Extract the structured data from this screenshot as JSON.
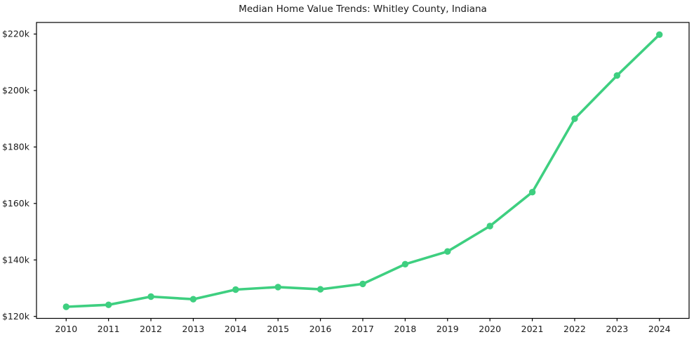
{
  "figure": {
    "background": "#ffffff",
    "frame_color": "#000000",
    "text_color": "#1a1a1a"
  },
  "chart_data": {
    "type": "line",
    "title": "Median Home Value Trends: Whitley County, Indiana",
    "xlabel": "",
    "ylabel": "",
    "x": [
      2010,
      2011,
      2012,
      2013,
      2014,
      2015,
      2016,
      2017,
      2018,
      2019,
      2020,
      2021,
      2022,
      2023,
      2024
    ],
    "series": [
      {
        "name": "Median Home Value",
        "values": [
          123400,
          124100,
          127000,
          126100,
          129500,
          130400,
          129600,
          131500,
          138500,
          143000,
          152000,
          164000,
          190000,
          205300,
          219800
        ]
      }
    ],
    "line_color": "#3ecf80",
    "marker": "circle",
    "grid": false,
    "legend": null,
    "xlim": [
      2009.3,
      2024.7
    ],
    "ylim": [
      119300,
      224100
    ],
    "xticks": [
      {
        "value": 2010,
        "label": "2010"
      },
      {
        "value": 2011,
        "label": "2011"
      },
      {
        "value": 2012,
        "label": "2012"
      },
      {
        "value": 2013,
        "label": "2013"
      },
      {
        "value": 2014,
        "label": "2014"
      },
      {
        "value": 2015,
        "label": "2015"
      },
      {
        "value": 2016,
        "label": "2016"
      },
      {
        "value": 2017,
        "label": "2017"
      },
      {
        "value": 2018,
        "label": "2018"
      },
      {
        "value": 2019,
        "label": "2019"
      },
      {
        "value": 2020,
        "label": "2020"
      },
      {
        "value": 2021,
        "label": "2021"
      },
      {
        "value": 2022,
        "label": "2022"
      },
      {
        "value": 2023,
        "label": "2023"
      },
      {
        "value": 2024,
        "label": "2024"
      }
    ],
    "yticks": [
      {
        "value": 120000,
        "label": "$120k"
      },
      {
        "value": 140000,
        "label": "$140k"
      },
      {
        "value": 160000,
        "label": "$160k"
      },
      {
        "value": 180000,
        "label": "$180k"
      },
      {
        "value": 200000,
        "label": "$200k"
      },
      {
        "value": 220000,
        "label": "$220k"
      }
    ]
  }
}
